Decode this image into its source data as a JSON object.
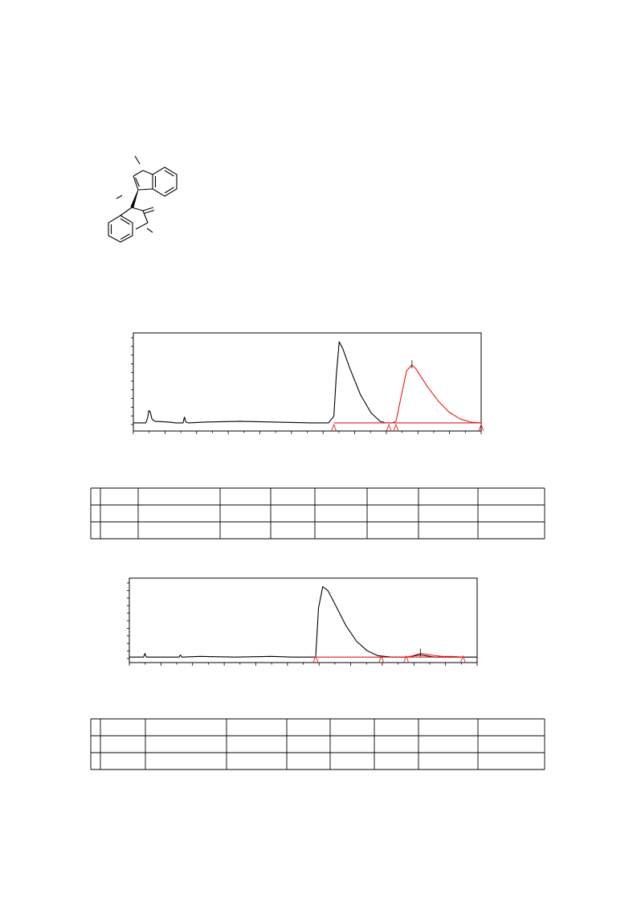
{
  "chart_data": [
    {
      "type": "line",
      "series": [
        {
          "color": "#000000",
          "x": [
            0.0,
            0.35,
            0.4,
            0.44,
            0.48,
            0.52,
            0.6,
            1.0,
            1.2,
            1.4,
            1.44,
            1.48,
            1.55,
            2.0,
            3.0,
            4.0,
            5.0,
            5.5,
            5.65,
            5.72,
            5.8,
            5.9,
            6.1,
            6.4,
            6.7,
            6.95,
            7.1,
            7.3
          ],
          "y": [
            2,
            2,
            8,
            17,
            15,
            7,
            4,
            3,
            2,
            2,
            9,
            3,
            2,
            3,
            4,
            3,
            2,
            2,
            10,
            60,
            100,
            92,
            68,
            36,
            14,
            4,
            2,
            2
          ]
        },
        {
          "color": "#e31a1c",
          "x": [
            7.3,
            7.4,
            7.55,
            7.7,
            7.85,
            7.95,
            8.1,
            8.3,
            8.6,
            8.9,
            9.2,
            9.5,
            9.8
          ],
          "y": [
            2,
            4,
            35,
            65,
            72,
            68,
            58,
            45,
            28,
            15,
            7,
            3,
            2
          ]
        },
        {
          "color": "#e31a1c",
          "x": [
            5.65,
            7.2,
            7.3,
            7.4,
            9.8
          ],
          "y": [
            2,
            2,
            2,
            2,
            2
          ]
        }
      ],
      "integration_markers": [
        5.65,
        7.2,
        7.4,
        9.8
      ],
      "xlim": [
        0,
        9.8
      ],
      "ylim": [
        0,
        105
      ]
    },
    {
      "type": "line",
      "series": [
        {
          "color": "#000000",
          "x": [
            0.0,
            0.4,
            0.44,
            0.48,
            1.4,
            1.44,
            1.48,
            2.0,
            3.0,
            4.0,
            4.6,
            5.25,
            5.33,
            5.45,
            5.6,
            5.8,
            6.1,
            6.4,
            6.7,
            7.0,
            7.4,
            7.8,
            8.2,
            8.6,
            9.0,
            9.5,
            9.8
          ],
          "y": [
            2,
            2,
            7,
            2,
            2,
            5,
            2,
            3,
            2,
            3,
            2,
            2,
            70,
            100,
            94,
            75,
            46,
            24,
            11,
            4,
            2,
            2,
            5,
            2,
            2,
            2,
            2
          ]
        },
        {
          "color": "#e31a1c",
          "x": [
            7.8,
            8.0,
            8.2,
            8.5,
            8.8,
            9.1,
            9.4
          ],
          "y": [
            2,
            4,
            7,
            5,
            3,
            3,
            2
          ]
        },
        {
          "color": "#e31a1c",
          "x": [
            5.25,
            7.1,
            7.8,
            9.4
          ],
          "y": [
            2,
            2,
            2,
            2
          ]
        }
      ],
      "integration_markers": [
        5.25,
        7.1,
        7.8,
        9.4
      ],
      "xlim": [
        0,
        9.8
      ],
      "ylim": [
        0,
        105
      ]
    }
  ],
  "tables": [
    {
      "rows": 3,
      "cols": 9,
      "cells": [
        [
          "",
          "",
          "",
          "",
          "",
          "",
          "",
          "",
          ""
        ],
        [
          "",
          "",
          "",
          "",
          "",
          "",
          "",
          "",
          ""
        ],
        [
          "",
          "",
          "",
          "",
          "",
          "",
          "",
          "",
          ""
        ]
      ]
    },
    {
      "rows": 3,
      "cols": 9,
      "cells": [
        [
          "",
          "",
          "",
          "",
          "",
          "",
          "",
          "",
          ""
        ],
        [
          "",
          "",
          "",
          "",
          "",
          "",
          "",
          "",
          ""
        ],
        [
          "",
          "",
          "",
          "",
          "",
          "",
          "",
          "",
          ""
        ]
      ]
    }
  ]
}
